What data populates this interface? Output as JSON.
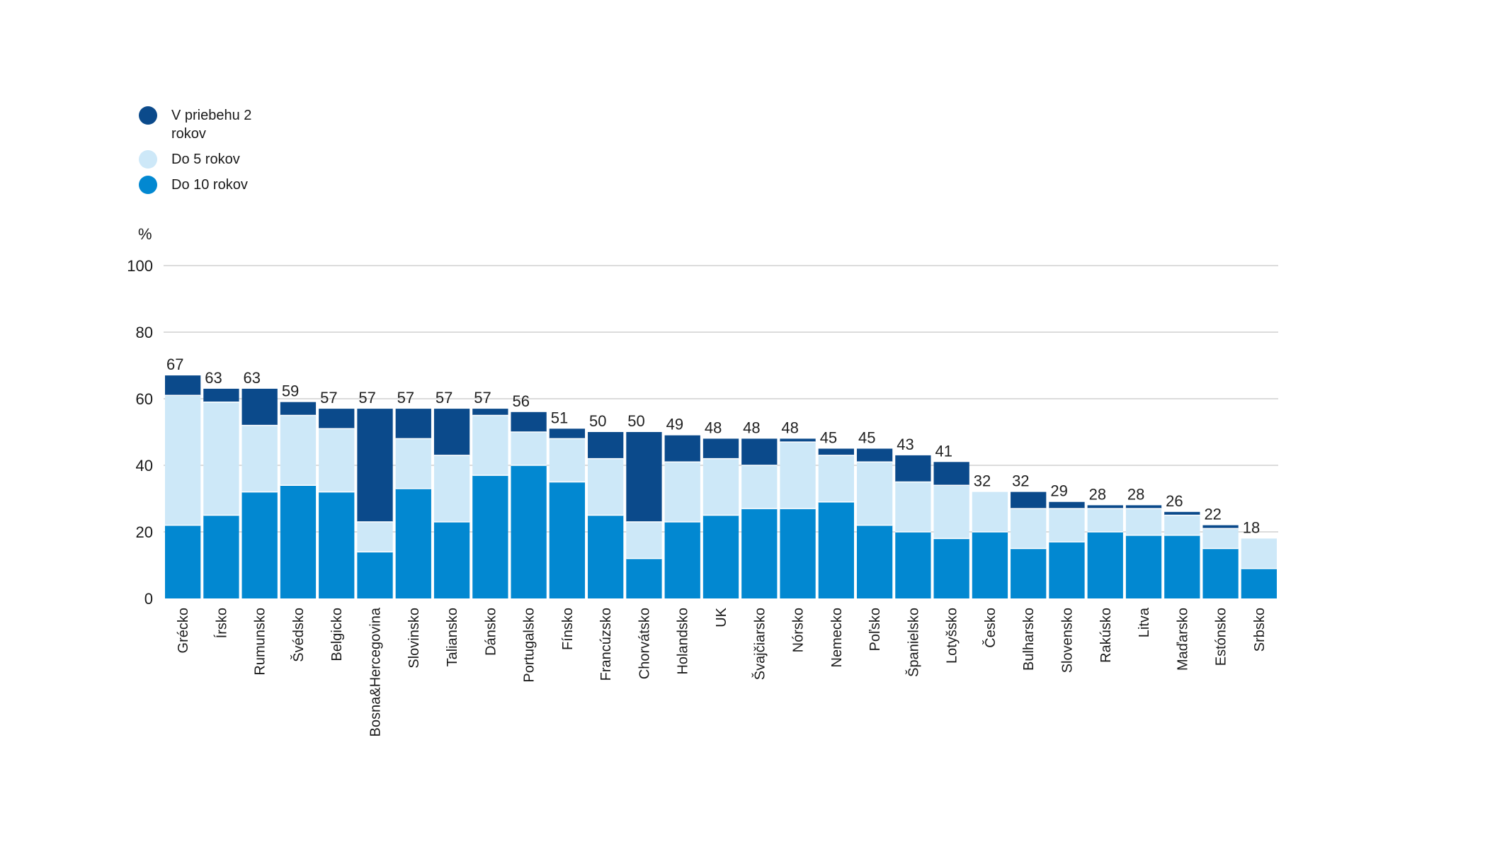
{
  "colors": {
    "v_priebehu_2_rokov": "#0b4a8b",
    "do_5_rokov": "#cde8f8",
    "do_10_rokov": "#0288d1",
    "grid": "#c8c8c8"
  },
  "legend": [
    {
      "key": "v_priebehu_2_rokov",
      "label": "V priebehu 2 rokov"
    },
    {
      "key": "do_5_rokov",
      "label": "Do 5 rokov"
    },
    {
      "key": "do_10_rokov",
      "label": "Do 10 rokov"
    }
  ],
  "chart_data": {
    "type": "bar",
    "stacked": true,
    "ylabel": "%",
    "ylim": [
      0,
      100
    ],
    "yticks": [
      0,
      20,
      40,
      60,
      80,
      100
    ],
    "grid": true,
    "legend_position": "top-left",
    "categories": [
      "Grécko",
      "Írsko",
      "Rumunsko",
      "Švédsko",
      "Belgicko",
      "Bosna&Hercegovina",
      "Slovinsko",
      "Taliansko",
      "Dánsko",
      "Portugalsko",
      "Fínsko",
      "Francúzsko",
      "Chorvátsko",
      "Holandsko",
      "UK",
      "Švajčiarsko",
      "Nórsko",
      "Nemecko",
      "Poľsko",
      "Španielsko",
      "Lotyšsko",
      "Česko",
      "Bulharsko",
      "Slovensko",
      "Rakúsko",
      "Litva",
      "Maďarsko",
      "Estónsko",
      "Srbsko"
    ],
    "series": [
      {
        "name": "Do 10 rokov",
        "key": "do_10_rokov",
        "values": [
          22,
          25,
          32,
          34,
          32,
          14,
          33,
          23,
          37,
          40,
          35,
          25,
          12,
          23,
          25,
          27,
          27,
          29,
          22,
          20,
          18,
          20,
          15,
          17,
          20,
          19,
          19,
          15,
          9
        ]
      },
      {
        "name": "Do 5 rokov",
        "key": "do_5_rokov",
        "values": [
          39,
          34,
          20,
          21,
          19,
          9,
          15,
          20,
          18,
          10,
          13,
          17,
          11,
          18,
          17,
          13,
          20,
          14,
          19,
          15,
          16,
          12,
          12,
          10,
          7,
          8,
          6,
          6,
          9
        ]
      },
      {
        "name": "V priebehu 2 rokov",
        "key": "v_priebehu_2_rokov",
        "values": [
          6,
          4,
          11,
          4,
          6,
          34,
          9,
          14,
          2,
          6,
          3,
          8,
          27,
          8,
          6,
          8,
          1,
          2,
          4,
          8,
          7,
          0,
          5,
          2,
          1,
          1,
          1,
          1,
          0
        ]
      }
    ],
    "totals": [
      67,
      63,
      63,
      59,
      57,
      57,
      57,
      57,
      57,
      56,
      51,
      50,
      50,
      49,
      48,
      48,
      48,
      45,
      45,
      43,
      41,
      32,
      32,
      29,
      28,
      28,
      26,
      22,
      18
    ]
  }
}
